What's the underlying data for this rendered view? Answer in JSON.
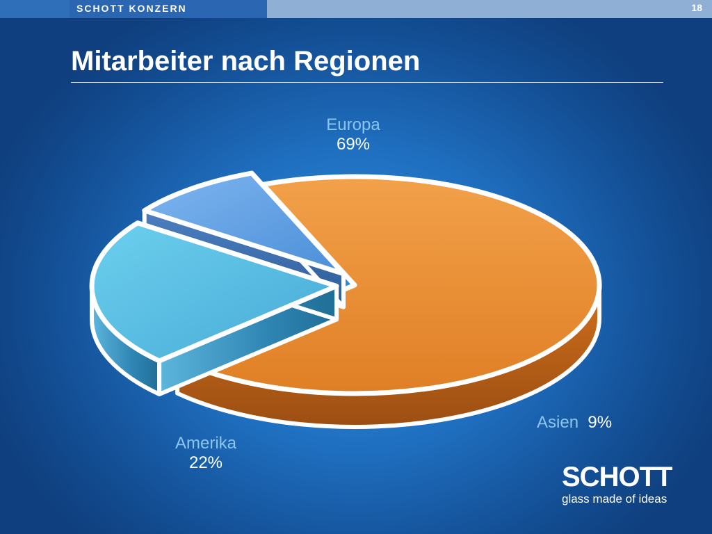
{
  "header": {
    "brand": "SCHOTT KONZERN",
    "page_number": "18"
  },
  "title": "Mitarbeiter nach Regionen",
  "chart_data": {
    "type": "pie",
    "title": "Mitarbeiter nach Regionen",
    "slices": [
      {
        "label": "Europa",
        "value": 69,
        "display": "69%",
        "color": "#e68a2e"
      },
      {
        "label": "Amerika",
        "value": 22,
        "display": "22%",
        "color": "#5cc0e6"
      },
      {
        "label": "Asien",
        "value": 9,
        "display": "9%",
        "color": "#5c9ee6"
      }
    ]
  },
  "logo": {
    "word": "SCHOTT",
    "tagline": "glass made of ideas"
  }
}
